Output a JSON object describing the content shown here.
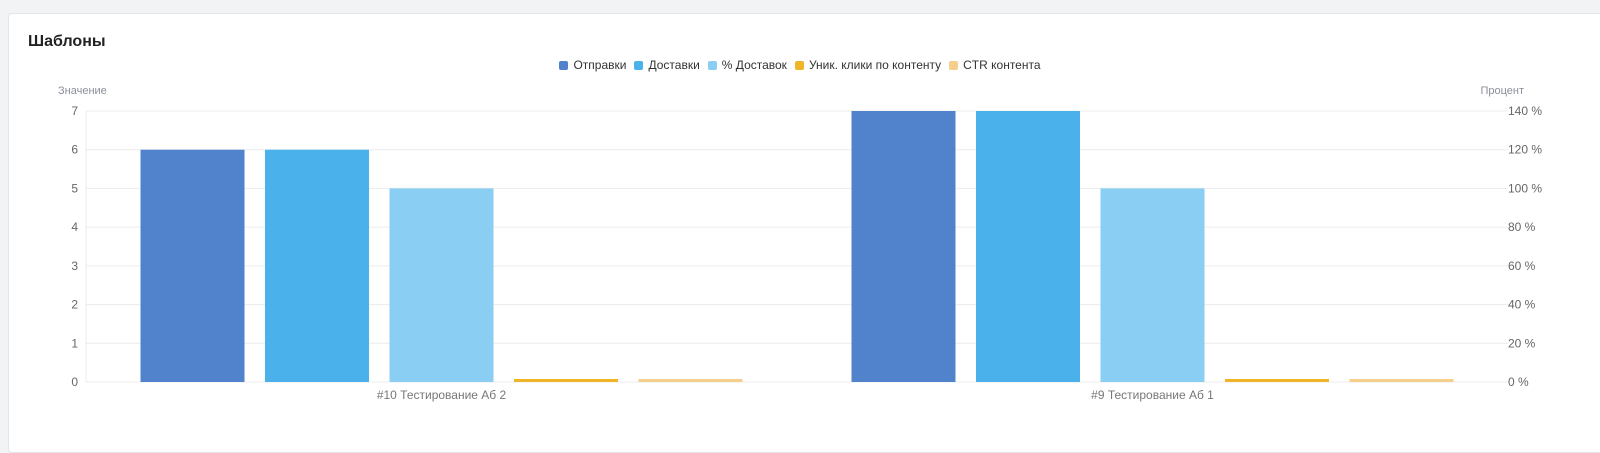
{
  "panel": {
    "title": "Шаблоны"
  },
  "colors": {
    "sends": "#5183cc",
    "deliveries": "#4ab1ea",
    "delivery_pct": "#8bcef4",
    "unique_clicks": "#efb428",
    "ctr": "#f7cf8c",
    "grid": "#ececec"
  },
  "chart_data": {
    "type": "bar",
    "title": "Шаблоны",
    "ylabel": "Значение",
    "y2label": "Процент",
    "ylim": [
      0,
      7
    ],
    "y2lim": [
      0,
      140
    ],
    "yticks": [
      "0",
      "1",
      "2",
      "3",
      "4",
      "5",
      "6",
      "7"
    ],
    "y2ticks": [
      "0 %",
      "20 %",
      "40 %",
      "60 %",
      "80 %",
      "100 %",
      "120 %",
      "140 %"
    ],
    "categories": [
      "#10 Тестирование Аб 2",
      "#9 Тестирование Аб 1"
    ],
    "legend_position": "top-center",
    "grid": true,
    "series": [
      {
        "name": "Отправки",
        "axis": "left",
        "color": "#5183cc",
        "values": [
          6,
          7
        ]
      },
      {
        "name": "Доставки",
        "axis": "left",
        "color": "#4ab1ea",
        "values": [
          6,
          7
        ]
      },
      {
        "name": "% Доставок",
        "axis": "right",
        "color": "#8bcef4",
        "values": [
          100,
          100
        ]
      },
      {
        "name": "Уник. клики по контенту",
        "axis": "left",
        "color": "#efb428",
        "values": [
          0,
          0
        ]
      },
      {
        "name": "CTR контента",
        "axis": "right",
        "color": "#f7cf8c",
        "values": [
          0,
          0
        ]
      }
    ]
  }
}
